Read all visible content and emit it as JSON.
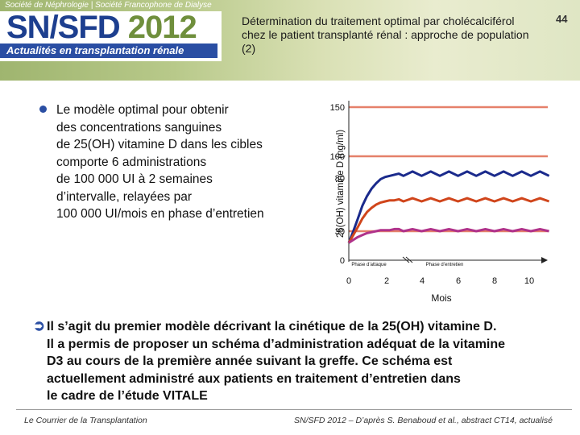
{
  "header": {
    "society": "Société de Néphrologie | Société Francophone de Dialyse",
    "logo_part1": "SN/SFD",
    "logo_part2": " 2012",
    "tagline": "Actualités en transplantation rénale",
    "title": "Détermination du traitement optimal par cholécalciférol chez le patient transplanté rénal : approche de population (2)",
    "page_number": "44"
  },
  "bullet": {
    "text": "Le modèle optimal pour obtenir\ndes concentrations sanguines\nde 25(OH) vitamine D dans les cibles\ncomporte 6 administrations\nde 100 000 UI à 2 semaines\nd’intervalle, relayées par\n100 000 UI/mois en phase d’entretien"
  },
  "conclusion": {
    "text": "Il s’agit du premier modèle décrivant la cinétique de la 25(OH) vitamine D.\nIl a permis de proposer un schéma d’administration adéquat de la vitamine\nD3 au cours de la première année suivant la greffe. Ce schéma est\nactuellement administré aux patients en traitement d’entretien dans\nle cadre de l’étude VITALE"
  },
  "footer": {
    "left": "Le Courrier de la Transplantation",
    "right": "SN/SFD 2012 – D’après S. Benaboud et al., abstract CT14, actualisé"
  },
  "colors": {
    "blue": "#1a2a8c",
    "orange": "#d0451b",
    "purple": "#b0328a",
    "ref_line": "#e5806a",
    "accent": "#2a4ea3"
  },
  "chart_data": {
    "type": "line",
    "xlabel": "Mois",
    "ylabel": "25(OH) vitamine D (ng/ml)",
    "x_ticks": [
      "0",
      "2",
      "4",
      "6",
      "8",
      "10"
    ],
    "y_ticks": [
      "0",
      "30",
      "80",
      "100",
      "150"
    ],
    "reference_lines": [
      30,
      100,
      150
    ],
    "phase_labels": [
      "Phase d’attaque",
      "Phase d’entretien"
    ],
    "x": [
      0,
      0.25,
      0.5,
      0.75,
      1.0,
      1.25,
      1.5,
      1.75,
      2.0,
      2.25,
      2.5,
      2.75,
      3.0,
      3.5,
      4.0,
      4.5,
      5.0,
      5.5,
      6.0,
      6.5,
      7.0,
      7.5,
      8.0,
      8.5,
      9.0,
      9.5,
      10.0,
      10.5,
      11.0
    ],
    "series": [
      {
        "values": [
          18,
          30,
          42,
          54,
          63,
          70,
          75,
          79,
          81,
          82,
          83,
          84,
          82,
          86,
          82,
          86,
          82,
          86,
          82,
          86,
          82,
          86,
          82,
          86,
          82,
          86,
          82,
          86,
          82
        ]
      },
      {
        "values": [
          18,
          26,
          34,
          42,
          48,
          52,
          55,
          57,
          58,
          59,
          59,
          60,
          58,
          61,
          58,
          61,
          58,
          61,
          58,
          61,
          58,
          61,
          58,
          61,
          58,
          61,
          58,
          61,
          58
        ]
      },
      {
        "values": [
          18,
          21,
          24,
          26,
          28,
          29,
          30,
          31,
          31,
          31,
          32,
          32,
          30,
          32,
          30,
          32,
          30,
          32,
          30,
          32,
          30,
          32,
          30,
          32,
          30,
          32,
          30,
          32,
          30
        ]
      }
    ]
  }
}
